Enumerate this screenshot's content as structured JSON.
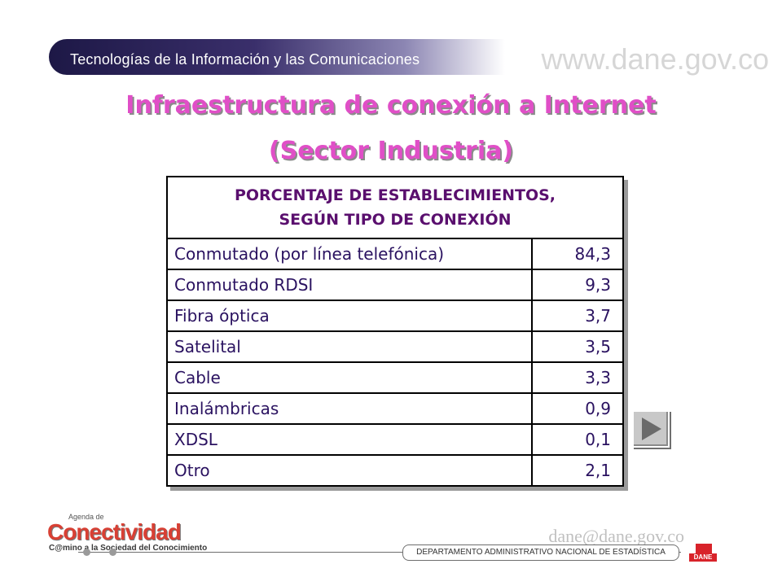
{
  "header": {
    "banner_text": "Tecnologías de la Información y las Comunicaciones",
    "url": "www.dane.gov.co"
  },
  "title": {
    "line1": "Infraestructura de conexión a Internet",
    "line2": "(Sector Industria)"
  },
  "table": {
    "header_line1": "PORCENTAJE DE ESTABLECIMIENTOS,",
    "header_line2": "SEGÚN TIPO DE CONEXIÓN",
    "rows": [
      {
        "label": "Conmutado (por línea telefónica)",
        "value": "84,3"
      },
      {
        "label": "Conmutado RDSI",
        "value": "9,3"
      },
      {
        "label": "Fibra óptica",
        "value": "3,7"
      },
      {
        "label": "Satelital",
        "value": "3,5"
      },
      {
        "label": "Cable",
        "value": "3,3"
      },
      {
        "label": "Inalámbricas",
        "value": "0,9"
      },
      {
        "label": "XDSL",
        "value": "0,1"
      },
      {
        "label": "Otro",
        "value": "2,1"
      }
    ]
  },
  "nav": {
    "next_icon": "play-triangle-icon"
  },
  "footer": {
    "logo_small": "Agenda de",
    "logo_big": "Conectividad",
    "logo_tag": "C@mino a la Sociedad del Conocimiento",
    "email": "dane@dane.gov.co",
    "department": "DEPARTAMENTO ADMINISTRATIVO NACIONAL DE ESTADÍSTICA",
    "dane_logo": "DANE"
  },
  "colors": {
    "title": "#e04fc7",
    "table_header": "#5a0f6e",
    "table_text": "#2a1260",
    "banner_dark": "#1d1846"
  }
}
